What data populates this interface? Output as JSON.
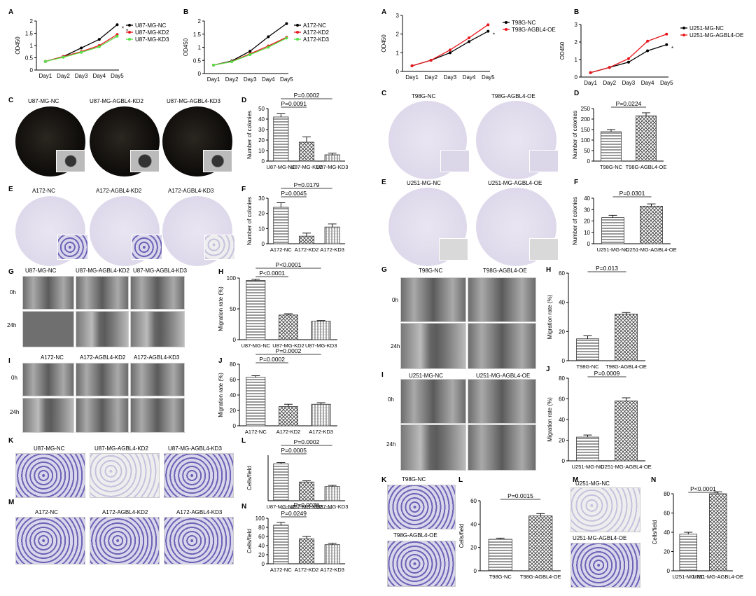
{
  "panel_letters": {
    "a1": "A",
    "b1": "B",
    "c1": "C",
    "d1": "D",
    "e1": "E",
    "f1": "F",
    "g1": "G",
    "h1": "H",
    "i1": "I",
    "j1": "J",
    "k1": "K",
    "l1": "L",
    "m1": "M",
    "n1": "N",
    "a2": "A",
    "b2": "B",
    "c2": "C",
    "d2": "D",
    "e2": "E",
    "f2": "F",
    "g2": "G",
    "h2": "H",
    "i2": "I",
    "j2": "J",
    "k2": "K",
    "l2": "L",
    "m2": "M",
    "n2": "N"
  },
  "photo_labels": {
    "c_u87_nc": "U87-MG-NC",
    "c_u87_kd2": "U87-MG-AGBL4-KD2",
    "c_u87_kd3": "U87-MG-AGBL4-KD3",
    "e_a172_nc": "A172-NC",
    "e_a172_kd2": "A172-AGBL4-KD2",
    "e_a172_kd3": "A172-AGBL4-KD3",
    "g_u87_nc": "U87-MG-NC",
    "g_u87_kd2": "U87-MG-AGBL4-KD2",
    "g_u87_kd3": "U87-MG-AGBL4-KD3",
    "g_0h": "0h",
    "g_24h": "24h",
    "i_a172_nc": "A172-NC",
    "i_a172_kd2": "A172-AGBL4-KD2",
    "i_a172_kd3": "A172-AGBL4-KD3",
    "i_0h": "0h",
    "i_24h": "24h",
    "k_u87_nc": "U87-MG-NC",
    "k_u87_kd2": "U87-MG-AGBL4-KD2",
    "k_u87_kd3": "U87-MG-AGBL4-KD3",
    "m_a172_nc": "A172-NC",
    "m_a172_kd2": "A172-AGBL4-KD2",
    "m_a172_kd3": "A172-AGBL4-KD3",
    "c2_t98_nc": "T98G-NC",
    "c2_t98_oe": "T98G-AGBL4-OE",
    "e2_u251_nc": "U251-MG-NC",
    "e2_u251_oe": "U251-MG-AGBL4-OE",
    "g2_t98_nc": "T98G-NC",
    "g2_t98_oe": "T98G-AGBL4-OE",
    "g2_0h": "0h",
    "g2_24h": "24h",
    "i2_u251_nc": "U251-MG-NC",
    "i2_u251_oe": "U251-MG-AGBL4-OE",
    "i2_0h": "0h",
    "i2_24h": "24h",
    "k2_t98_nc": "T98G-NC",
    "k2_t98_oe": "T98G-AGBL4-OE",
    "m2_u251_nc": "U251-MG-NC",
    "m2_u251_oe": "U251-MG-AGBL4-OE"
  },
  "colors": {
    "black": "#000000",
    "red": "#e8161b",
    "green": "#55e244"
  },
  "chart_data": [
    {
      "id": "A1",
      "type": "line",
      "x": [
        "Day1",
        "Day2",
        "Day3",
        "Day4",
        "Day5"
      ],
      "ylabel": "OD450",
      "ylim": [
        0,
        2
      ],
      "yticks": [
        "0",
        "0.5",
        "1",
        "1.5",
        "2"
      ],
      "ytickvals": [
        0,
        0.5,
        1,
        1.5,
        2
      ],
      "series": [
        {
          "name": "U87-MG-NC",
          "color": "#000000",
          "values": [
            0.35,
            0.55,
            0.9,
            1.25,
            1.85
          ]
        },
        {
          "name": "U87-MG-KD2",
          "color": "#e8161b",
          "values": [
            0.35,
            0.55,
            0.75,
            1.0,
            1.45
          ]
        },
        {
          "name": "U87-MG-KD3",
          "color": "#55e244",
          "values": [
            0.35,
            0.52,
            0.72,
            0.95,
            1.38
          ]
        }
      ],
      "annotations": [
        "*",
        "*"
      ]
    },
    {
      "id": "B1",
      "type": "line",
      "x": [
        "Day1",
        "Day2",
        "Day3",
        "Day4",
        "Day5"
      ],
      "ylabel": "OD450",
      "ylim": [
        0,
        2
      ],
      "yticks": [
        "0",
        "0.5",
        "1",
        "1.5",
        "2"
      ],
      "ytickvals": [
        0,
        0.5,
        1,
        1.5,
        2
      ],
      "series": [
        {
          "name": "A172-NC",
          "color": "#000000",
          "values": [
            0.32,
            0.48,
            0.85,
            1.4,
            1.9
          ]
        },
        {
          "name": "A172-KD2",
          "color": "#e8161b",
          "values": [
            0.32,
            0.46,
            0.75,
            1.05,
            1.38
          ]
        },
        {
          "name": "A172-KD3",
          "color": "#55e244",
          "values": [
            0.32,
            0.45,
            0.72,
            1.0,
            1.35
          ]
        }
      ]
    },
    {
      "id": "D1",
      "type": "bar",
      "categories": [
        "U87-MG-NC",
        "U87-MG-KD2",
        "U87-MG-KD3"
      ],
      "values": [
        42,
        18,
        6
      ],
      "errors": [
        3,
        5,
        1.5
      ],
      "ylabel": "Number of colonies",
      "ylim": [
        0,
        50
      ],
      "yticks": [
        "0",
        "10",
        "20",
        "30",
        "40",
        "50"
      ],
      "ytickvals": [
        0,
        10,
        20,
        30,
        40,
        50
      ],
      "pvalues": [
        "P=0.0002",
        "P=0.0091"
      ]
    },
    {
      "id": "F1",
      "type": "bar",
      "categories": [
        "A172-NC",
        "A172-KD2",
        "A172-KD3"
      ],
      "values": [
        24,
        5,
        11
      ],
      "errors": [
        3,
        2,
        2
      ],
      "ylabel": "Number of colonies",
      "ylim": [
        0,
        30
      ],
      "yticks": [
        "0",
        "10",
        "20",
        "30"
      ],
      "ytickvals": [
        0,
        10,
        20,
        30
      ],
      "pvalues": [
        "P=0.0179",
        "P=0.0045"
      ]
    },
    {
      "id": "H1",
      "type": "bar",
      "categories": [
        "U87-MG-NC",
        "U87-MG-KD2",
        "U87-MG-KD3"
      ],
      "values": [
        96,
        40,
        30
      ],
      "errors": [
        2,
        2,
        1
      ],
      "ylabel": "Migration rate (%)",
      "ylim": [
        0,
        100
      ],
      "yticks": [
        "0",
        "50",
        "100"
      ],
      "ytickvals": [
        0,
        50,
        100
      ],
      "pvalues": [
        "P<0.0001",
        "P<0.0001"
      ]
    },
    {
      "id": "J1",
      "type": "bar",
      "categories": [
        "A172-NC",
        "A172-KD2",
        "A172-KD3"
      ],
      "values": [
        63,
        25,
        28
      ],
      "errors": [
        2,
        3,
        2
      ],
      "ylabel": "Migration rate (%)",
      "ylim": [
        0,
        80
      ],
      "yticks": [
        "0",
        "20",
        "40",
        "60",
        "80"
      ],
      "ytickvals": [
        0,
        20,
        40,
        60,
        80
      ],
      "pvalues": [
        "P=0.0002",
        "P=0.0002"
      ]
    },
    {
      "id": "L1",
      "type": "bar",
      "categories": [
        "U87-MG-NC",
        "U87-MG-KD2",
        "U87-MG-KD3"
      ],
      "values": [
        65,
        33,
        25
      ],
      "errors": [
        2,
        2,
        2
      ],
      "ylabel": "Cells/field",
      "ylim": [
        0,
        80
      ],
      "yticks": [],
      "ytickvals": [],
      "pvalues": [
        "P=0.0002",
        "P=0.0005"
      ]
    },
    {
      "id": "N1",
      "type": "bar",
      "categories": [
        "A172-NC",
        "A172-KD2",
        "A172-KD3"
      ],
      "values": [
        85,
        55,
        42
      ],
      "errors": [
        6,
        5,
        3
      ],
      "ylabel": "Cells/field",
      "ylim": [
        0,
        100
      ],
      "yticks": [
        "0",
        "20",
        "40",
        "60",
        "80",
        "100"
      ],
      "ytickvals": [
        0,
        20,
        40,
        60,
        80,
        100
      ],
      "pvalues": [
        "P=0.0036",
        "P=0.0249"
      ]
    },
    {
      "id": "A2",
      "type": "line",
      "x": [
        "Day1",
        "Day2",
        "Day3",
        "Day4",
        "Day5"
      ],
      "ylabel": "OD450",
      "ylim": [
        0,
        3
      ],
      "yticks": [
        "0",
        "1",
        "2",
        "3"
      ],
      "ytickvals": [
        0,
        1,
        2,
        3
      ],
      "series": [
        {
          "name": "T98G-NC",
          "color": "#000000",
          "values": [
            0.3,
            0.6,
            1.0,
            1.6,
            2.15
          ]
        },
        {
          "name": "T98G-AGBL4-OE",
          "color": "#e8161b",
          "values": [
            0.3,
            0.6,
            1.15,
            1.8,
            2.5
          ]
        }
      ],
      "annotations": [
        "*"
      ]
    },
    {
      "id": "B2",
      "type": "line",
      "x": [
        "Day1",
        "Day2",
        "Day3",
        "Day4",
        "Day5"
      ],
      "ylabel": "OD450",
      "ylim": [
        0,
        3
      ],
      "yticks": [
        "0",
        "1",
        "2",
        "3"
      ],
      "ytickvals": [
        0,
        1,
        2,
        3
      ],
      "series": [
        {
          "name": "U251-MG-NC",
          "color": "#000000",
          "values": [
            0.25,
            0.55,
            0.85,
            1.5,
            1.85
          ]
        },
        {
          "name": "U251-MG-AGBL4-OE",
          "color": "#e8161b",
          "values": [
            0.25,
            0.55,
            1.05,
            2.05,
            2.45
          ]
        }
      ],
      "annotations": [
        "*"
      ]
    },
    {
      "id": "D2",
      "type": "bar",
      "categories": [
        "T98G-NC",
        "T98G-AGBL4-OE"
      ],
      "values": [
        140,
        215
      ],
      "errors": [
        10,
        15
      ],
      "ylabel": "Number of colonies",
      "ylim": [
        0,
        250
      ],
      "yticks": [
        "0",
        "50",
        "100",
        "150",
        "200",
        "250"
      ],
      "ytickvals": [
        0,
        50,
        100,
        150,
        200,
        250
      ],
      "pvalues": [
        "P=0.0224"
      ]
    },
    {
      "id": "F2",
      "type": "bar",
      "categories": [
        "U251-MG-NC",
        "U251-MG-AGBL4-OE"
      ],
      "values": [
        23,
        33
      ],
      "errors": [
        2,
        2
      ],
      "ylabel": "Number of colonies",
      "ylim": [
        0,
        40
      ],
      "yticks": [
        "0",
        "10",
        "20",
        "30",
        "40"
      ],
      "ytickvals": [
        0,
        10,
        20,
        30,
        40
      ],
      "pvalues": [
        "P=0.0301"
      ]
    },
    {
      "id": "H2",
      "type": "bar",
      "categories": [
        "T98G-NC",
        "T98G-AGBL4-OE"
      ],
      "values": [
        15,
        32
      ],
      "errors": [
        2,
        1
      ],
      "ylabel": "Migration rate (%)",
      "ylim": [
        0,
        60
      ],
      "yticks": [
        "0",
        "20",
        "40",
        "60"
      ],
      "ytickvals": [
        0,
        20,
        40,
        60
      ],
      "pvalues": [
        "P=0.013"
      ]
    },
    {
      "id": "J2",
      "type": "bar",
      "categories": [
        "U251-MG-NC",
        "U251-MG-AGBL4-OE"
      ],
      "values": [
        23,
        58
      ],
      "errors": [
        2,
        3
      ],
      "ylabel": "Migration rate (%)",
      "ylim": [
        0,
        80
      ],
      "yticks": [
        "0",
        "20",
        "40",
        "60",
        "80"
      ],
      "ytickvals": [
        0,
        20,
        40,
        60,
        80
      ],
      "pvalues": [
        "P=0.0009"
      ]
    },
    {
      "id": "L2",
      "type": "bar",
      "categories": [
        "T98G-NC",
        "T98G-AGBL4-OE"
      ],
      "values": [
        27,
        47
      ],
      "errors": [
        1,
        2
      ],
      "ylabel": "Cells/field",
      "ylim": [
        0,
        60
      ],
      "yticks": [
        "0",
        "20",
        "40",
        "60"
      ],
      "ytickvals": [
        0,
        20,
        40,
        60
      ],
      "pvalues": [
        "P=0.0015"
      ]
    },
    {
      "id": "N2",
      "type": "bar",
      "categories": [
        "U251-MG-NC",
        "U251-MG-AGBL4-OE"
      ],
      "values": [
        38,
        80
      ],
      "errors": [
        2,
        2
      ],
      "ylabel": "Cells/field",
      "ylim": [
        0,
        80
      ],
      "yticks": [
        "0",
        "20",
        "40",
        "60",
        "80"
      ],
      "ytickvals": [
        0,
        20,
        40,
        60,
        80
      ],
      "pvalues": [
        "P<0.0001"
      ]
    }
  ]
}
